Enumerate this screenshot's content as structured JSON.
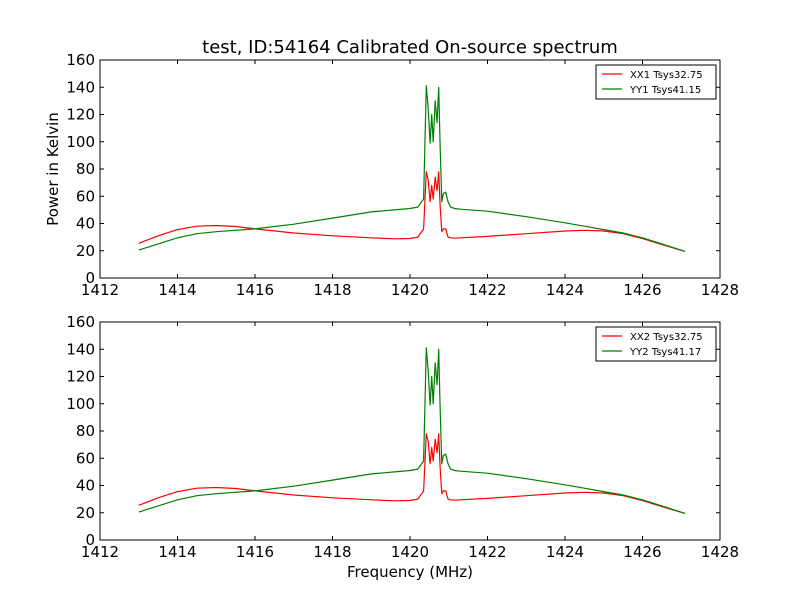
{
  "figure_title": "test, ID:54164 Calibrated On-source spectrum",
  "colors": {
    "xx": "#ff0000",
    "yy": "#008000"
  },
  "chart_data": [
    {
      "type": "line",
      "title": "test, ID:54164 Calibrated On-source spectrum",
      "xlabel": "",
      "ylabel": "Power in Kelvin",
      "xlim": [
        1412,
        1428
      ],
      "ylim": [
        0,
        160
      ],
      "xticks": [
        1412,
        1414,
        1416,
        1418,
        1420,
        1422,
        1424,
        1426,
        1428
      ],
      "yticks": [
        0,
        20,
        40,
        60,
        80,
        100,
        120,
        140,
        160
      ],
      "grid": false,
      "legend_position": "top-right",
      "series": [
        {
          "name": "XX1 Tsys32.75",
          "color": "#ff0000",
          "x": [
            1413,
            1413.5,
            1414,
            1414.5,
            1415,
            1415.5,
            1416,
            1417,
            1418,
            1419,
            1419.6,
            1420,
            1420.2,
            1420.35,
            1420.42,
            1420.47,
            1420.52,
            1420.56,
            1420.6,
            1420.65,
            1420.7,
            1420.74,
            1420.78,
            1420.82,
            1420.86,
            1420.92,
            1420.98,
            1421.05,
            1421.15,
            1421.3,
            1422,
            1423,
            1424,
            1424.5,
            1425,
            1425.5,
            1426,
            1426.5,
            1427.1
          ],
          "y": [
            25.5,
            31,
            35.5,
            38,
            38.5,
            37.8,
            36,
            33,
            31,
            29.5,
            28.8,
            29,
            30,
            36,
            78,
            72,
            56,
            68,
            58,
            74,
            64,
            78,
            52,
            34,
            36,
            36,
            30,
            29.5,
            29.2,
            29.5,
            30.5,
            32.5,
            34.5,
            35,
            34.5,
            32.5,
            29,
            24.5,
            19.5
          ]
        },
        {
          "name": "YY1 Tsys41.15",
          "color": "#008000",
          "x": [
            1413,
            1413.5,
            1414,
            1414.5,
            1415,
            1416,
            1417,
            1418,
            1419,
            1419.6,
            1420,
            1420.2,
            1420.35,
            1420.42,
            1420.47,
            1420.52,
            1420.56,
            1420.6,
            1420.65,
            1420.7,
            1420.74,
            1420.78,
            1420.82,
            1420.86,
            1420.92,
            1420.98,
            1421.05,
            1421.15,
            1421.3,
            1422,
            1423,
            1424,
            1424.5,
            1425,
            1425.5,
            1426,
            1426.5,
            1427.1
          ],
          "y": [
            20.5,
            25,
            29.5,
            32.5,
            34,
            36,
            39.5,
            44,
            48.5,
            50,
            51,
            52,
            58,
            141,
            124,
            99,
            120,
            100,
            130,
            114,
            140,
            95,
            56,
            62,
            63,
            56,
            52,
            51,
            50.5,
            49,
            45,
            40.5,
            38,
            35.5,
            33,
            29.5,
            25,
            19.5
          ]
        }
      ]
    },
    {
      "type": "line",
      "title": "",
      "xlabel": "Frequency (MHz)",
      "ylabel": "",
      "xlim": [
        1412,
        1428
      ],
      "ylim": [
        0,
        160
      ],
      "xticks": [
        1412,
        1414,
        1416,
        1418,
        1420,
        1422,
        1424,
        1426,
        1428
      ],
      "yticks": [
        0,
        20,
        40,
        60,
        80,
        100,
        120,
        140,
        160
      ],
      "grid": false,
      "legend_position": "top-right",
      "series": [
        {
          "name": "XX2 Tsys32.75",
          "color": "#ff0000",
          "x": [
            1413,
            1413.5,
            1414,
            1414.5,
            1415,
            1415.5,
            1416,
            1417,
            1418,
            1419,
            1419.6,
            1420,
            1420.2,
            1420.35,
            1420.42,
            1420.47,
            1420.52,
            1420.56,
            1420.6,
            1420.65,
            1420.7,
            1420.74,
            1420.78,
            1420.82,
            1420.86,
            1420.92,
            1420.98,
            1421.05,
            1421.15,
            1421.3,
            1422,
            1423,
            1424,
            1424.5,
            1425,
            1425.5,
            1426,
            1426.5,
            1427.1
          ],
          "y": [
            25.5,
            31,
            35.5,
            38,
            38.5,
            37.8,
            36,
            33,
            31,
            29.5,
            28.8,
            29,
            30,
            36,
            78,
            72,
            56,
            68,
            58,
            74,
            64,
            78,
            52,
            34,
            36,
            36,
            30,
            29.5,
            29.2,
            29.5,
            30.5,
            32.5,
            34.5,
            35,
            34.5,
            32.5,
            29,
            24.5,
            19.5
          ]
        },
        {
          "name": "YY2 Tsys41.17",
          "color": "#008000",
          "x": [
            1413,
            1413.5,
            1414,
            1414.5,
            1415,
            1416,
            1417,
            1418,
            1419,
            1419.6,
            1420,
            1420.2,
            1420.35,
            1420.42,
            1420.47,
            1420.52,
            1420.56,
            1420.6,
            1420.65,
            1420.7,
            1420.74,
            1420.78,
            1420.82,
            1420.86,
            1420.92,
            1420.98,
            1421.05,
            1421.15,
            1421.3,
            1422,
            1423,
            1424,
            1424.5,
            1425,
            1425.5,
            1426,
            1426.5,
            1427.1
          ],
          "y": [
            20.5,
            25,
            29.5,
            32.5,
            34,
            36,
            39.5,
            44,
            48.5,
            50,
            51,
            52,
            58,
            141,
            124,
            99,
            120,
            100,
            130,
            114,
            140,
            95,
            56,
            62,
            63,
            56,
            52,
            51,
            50.5,
            49,
            45,
            40.5,
            38,
            35.5,
            33,
            29.5,
            25,
            19.5
          ]
        }
      ]
    }
  ]
}
